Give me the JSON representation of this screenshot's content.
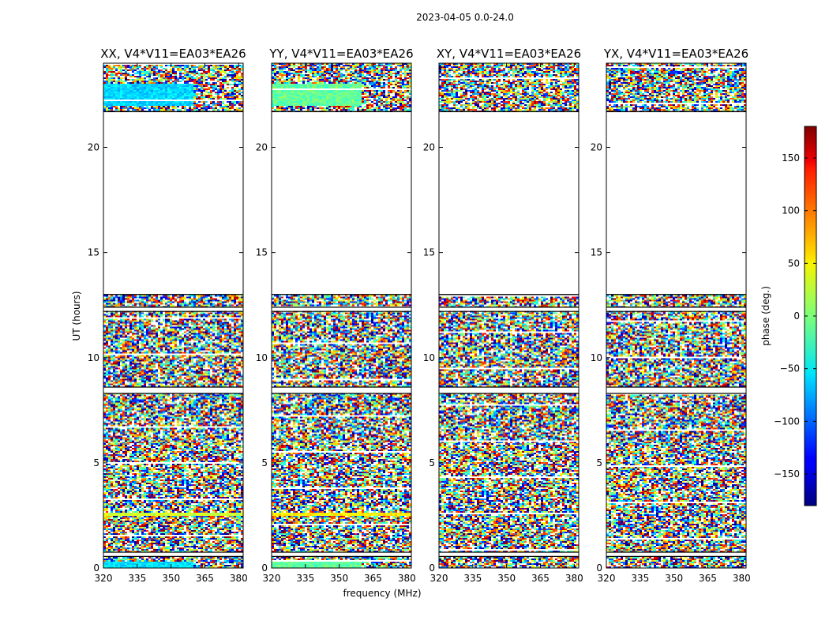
{
  "figure": {
    "suptitle": "2023-04-05 0.0-24.0",
    "xlabel": "frequency (MHz)",
    "ylabel": "UT (hours)",
    "colorbar": {
      "label": "phase (deg.)",
      "range": [
        -180,
        180
      ],
      "ticks": [
        -150,
        -100,
        -50,
        0,
        50,
        100,
        150
      ],
      "tick_labels": [
        "−150",
        "−100",
        "−50",
        "0",
        "50",
        "100",
        "150"
      ],
      "colormap": "jet"
    }
  },
  "chart_data": [
    {
      "type": "heatmap",
      "title": "XX, V4*V11=EA03*EA26",
      "xlim": [
        320,
        382
      ],
      "ylim": [
        0,
        24
      ],
      "xticks": [
        320,
        335,
        350,
        365,
        380
      ],
      "yticks": [
        0,
        5,
        10,
        15,
        20
      ],
      "data_hour_ranges": [
        [
          0,
          13
        ],
        [
          21.7,
          24
        ]
      ],
      "flagged_hour_ranges": [
        [
          0.55,
          0.75
        ],
        [
          8.3,
          8.6
        ],
        [
          12.2,
          12.4
        ],
        [
          13,
          21.7
        ]
      ],
      "coherent_bands": [
        {
          "hours": [
            22.0,
            23.0
          ],
          "freq_range": [
            320,
            360
          ],
          "phase": -60
        },
        {
          "hours": [
            2.45,
            2.65
          ],
          "freq_range": [
            320,
            382
          ],
          "phase": 30
        },
        {
          "hours": [
            0.0,
            0.3
          ],
          "freq_range": [
            320,
            360
          ],
          "phase": -55
        }
      ]
    },
    {
      "type": "heatmap",
      "title": "YY, V4*V11=EA03*EA26",
      "xlim": [
        320,
        382
      ],
      "ylim": [
        0,
        24
      ],
      "xticks": [
        320,
        335,
        350,
        365,
        380
      ],
      "yticks": [
        0,
        5,
        10,
        15,
        20
      ],
      "data_hour_ranges": [
        [
          0,
          13
        ],
        [
          21.7,
          24
        ]
      ],
      "flagged_hour_ranges": [
        [
          0.55,
          0.75
        ],
        [
          8.3,
          8.6
        ],
        [
          12.2,
          12.4
        ],
        [
          13,
          21.7
        ]
      ],
      "coherent_bands": [
        {
          "hours": [
            22.0,
            23.0
          ],
          "freq_range": [
            320,
            360
          ],
          "phase": -10
        },
        {
          "hours": [
            2.45,
            2.65
          ],
          "freq_range": [
            320,
            382
          ],
          "phase": 50
        },
        {
          "hours": [
            0.0,
            0.3
          ],
          "freq_range": [
            320,
            360
          ],
          "phase": -10
        }
      ]
    },
    {
      "type": "heatmap",
      "title": "XY, V4*V11=EA03*EA26",
      "xlim": [
        320,
        382
      ],
      "ylim": [
        0,
        24
      ],
      "xticks": [
        320,
        335,
        350,
        365,
        380
      ],
      "yticks": [
        0,
        5,
        10,
        15,
        20
      ],
      "data_hour_ranges": [
        [
          0,
          13
        ],
        [
          21.7,
          24
        ]
      ],
      "flagged_hour_ranges": [
        [
          0.55,
          0.75
        ],
        [
          8.3,
          8.6
        ],
        [
          12.2,
          12.4
        ],
        [
          13,
          21.7
        ]
      ],
      "coherent_bands": []
    },
    {
      "type": "heatmap",
      "title": "YX, V4*V11=EA03*EA26",
      "xlim": [
        320,
        382
      ],
      "ylim": [
        0,
        24
      ],
      "xticks": [
        320,
        335,
        350,
        365,
        380
      ],
      "yticks": [
        0,
        5,
        10,
        15,
        20
      ],
      "data_hour_ranges": [
        [
          0,
          13
        ],
        [
          21.7,
          24
        ]
      ],
      "flagged_hour_ranges": [
        [
          0.55,
          0.75
        ],
        [
          8.3,
          8.6
        ],
        [
          12.2,
          12.4
        ],
        [
          13,
          21.7
        ]
      ],
      "coherent_bands": []
    }
  ]
}
